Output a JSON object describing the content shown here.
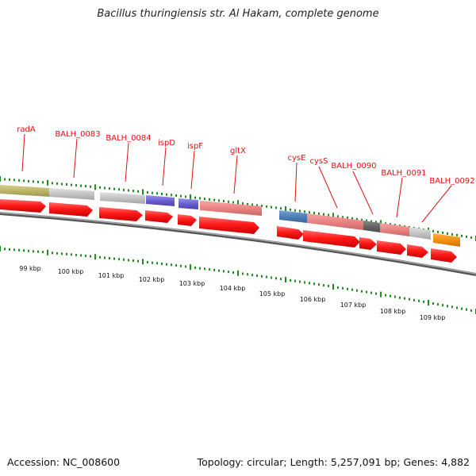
{
  "title": "Bacillus thuringiensis str. Al Hakam, complete genome",
  "footer": {
    "accession": "Accession: NC_008600",
    "summary": "Topology: circular; Length: 5,257,091 bp; Genes: 4,882"
  },
  "colors": {
    "label": "#dd1111",
    "tick": "#228822",
    "backbone": "#808080",
    "arrow": "#ff1111"
  },
  "scale_labels": [
    "99 kbp",
    "100 kbp",
    "101 kbp",
    "102 kbp",
    "103 kbp",
    "104 kbp",
    "105 kbp",
    "106 kbp",
    "107 kbp",
    "108 kbp",
    "109 kbp"
  ],
  "genes": [
    "radA",
    "BALH_0083",
    "BALH_0084",
    "ispD",
    "ispF",
    "gltX",
    "cysE",
    "cysS",
    "BALH_0090",
    "BALH_0091",
    "BALH_0092"
  ]
}
